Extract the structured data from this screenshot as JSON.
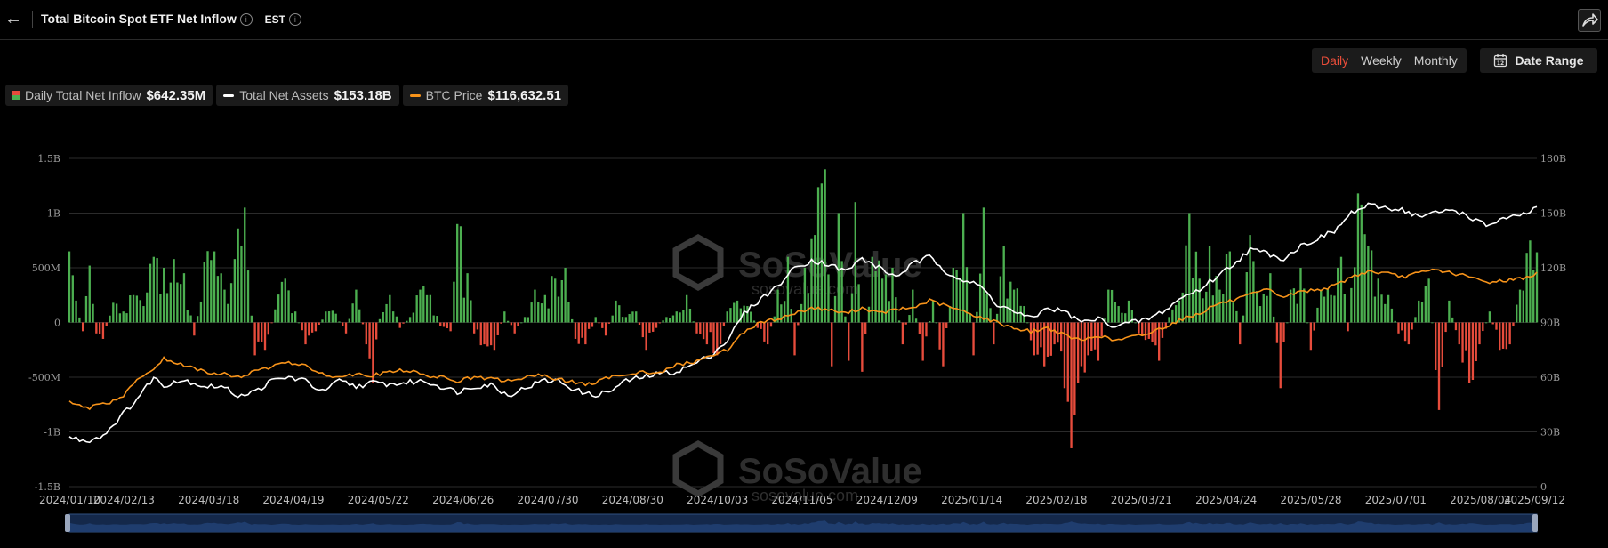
{
  "header": {
    "title": "Total Bitcoin Spot ETF Net Inflow",
    "timezone": "EST"
  },
  "toolbar": {
    "periods": [
      "Daily",
      "Weekly",
      "Monthly"
    ],
    "active_period": "Daily",
    "date_range_label": "Date Range"
  },
  "legend": [
    {
      "label": "Daily Total Net Inflow",
      "value": "$642.35M"
    },
    {
      "label": "Total Net Assets",
      "value": "$153.18B",
      "color": "#ffffff"
    },
    {
      "label": "BTC Price",
      "value": "$116,632.51",
      "color": "#f7931a"
    }
  ],
  "watermark": {
    "brand": "SoSoValue",
    "url": "sosovalue.com"
  },
  "colors": {
    "positive": "#4caf50",
    "negative": "#e74c3c",
    "assets": "#ffffff",
    "price": "#f7931a",
    "grid": "#2b2b2b"
  },
  "chart_data": {
    "type": "bar+line",
    "x_start": "2024/01/10",
    "x_end": "2025/09/12",
    "x_ticks": [
      "2024/01/10",
      "2024/02/13",
      "2024/03/18",
      "2024/04/19",
      "2024/05/22",
      "2024/06/26",
      "2024/07/30",
      "2024/08/30",
      "2024/10/03",
      "2024/11/05",
      "2024/12/09",
      "2025/01/14",
      "2025/02/18",
      "2025/03/21",
      "2025/04/24",
      "2025/05/28",
      "2025/07/01",
      "2025/08/04",
      "2025/09/12"
    ],
    "y_left": {
      "ticks": [
        "1.5B",
        "1B",
        "500M",
        "0",
        "-500M",
        "-1B",
        "-1.5B"
      ],
      "range": [
        -1500,
        1500
      ],
      "unit": "M USD"
    },
    "y_right": {
      "ticks": [
        "180B",
        "150B",
        "120B",
        "90B",
        "60B",
        "30B",
        "0"
      ],
      "range": [
        0,
        180
      ],
      "unit": "B USD"
    },
    "anchors_net_inflow": [
      [
        0,
        650
      ],
      [
        2,
        200
      ],
      [
        4,
        -80
      ],
      [
        6,
        520
      ],
      [
        8,
        -100
      ],
      [
        10,
        -150
      ],
      [
        13,
        180
      ],
      [
        16,
        100
      ],
      [
        19,
        250
      ],
      [
        22,
        150
      ],
      [
        25,
        600
      ],
      [
        28,
        500
      ],
      [
        31,
        580
      ],
      [
        34,
        450
      ],
      [
        37,
        -120
      ],
      [
        40,
        550
      ],
      [
        43,
        650
      ],
      [
        46,
        300
      ],
      [
        49,
        580
      ],
      [
        52,
        1050
      ],
      [
        55,
        -300
      ],
      [
        58,
        -250
      ],
      [
        61,
        120
      ],
      [
        64,
        400
      ],
      [
        67,
        100
      ],
      [
        70,
        -200
      ],
      [
        73,
        -80
      ],
      [
        76,
        100
      ],
      [
        79,
        80
      ],
      [
        82,
        -100
      ],
      [
        85,
        300
      ],
      [
        88,
        -200
      ],
      [
        90,
        -550
      ],
      [
        92,
        30
      ],
      [
        95,
        250
      ],
      [
        98,
        -50
      ],
      [
        101,
        50
      ],
      [
        104,
        300
      ],
      [
        107,
        250
      ],
      [
        110,
        -30
      ],
      [
        113,
        -80
      ],
      [
        115,
        900
      ],
      [
        118,
        450
      ],
      [
        120,
        -100
      ],
      [
        123,
        -200
      ],
      [
        126,
        -250
      ],
      [
        129,
        100
      ],
      [
        132,
        -100
      ],
      [
        135,
        50
      ],
      [
        138,
        300
      ],
      [
        141,
        250
      ],
      [
        144,
        400
      ],
      [
        147,
        500
      ],
      [
        150,
        -150
      ],
      [
        153,
        -200
      ],
      [
        156,
        50
      ],
      [
        159,
        -120
      ],
      [
        162,
        200
      ],
      [
        165,
        50
      ],
      [
        168,
        100
      ],
      [
        171,
        -250
      ],
      [
        174,
        -50
      ],
      [
        177,
        50
      ],
      [
        180,
        100
      ],
      [
        183,
        250
      ],
      [
        186,
        -100
      ],
      [
        189,
        -200
      ],
      [
        192,
        -300
      ],
      [
        195,
        100
      ],
      [
        198,
        200
      ],
      [
        201,
        150
      ],
      [
        204,
        -50
      ],
      [
        207,
        -200
      ],
      [
        210,
        300
      ],
      [
        213,
        600
      ],
      [
        215,
        -300
      ],
      [
        218,
        500
      ],
      [
        221,
        800
      ],
      [
        224,
        1400
      ],
      [
        226,
        -400
      ],
      [
        228,
        1000
      ],
      [
        231,
        -350
      ],
      [
        233,
        1100
      ],
      [
        235,
        -450
      ],
      [
        238,
        600
      ],
      [
        241,
        400
      ],
      [
        244,
        500
      ],
      [
        247,
        -200
      ],
      [
        250,
        300
      ],
      [
        253,
        -350
      ],
      [
        256,
        200
      ],
      [
        259,
        -400
      ],
      [
        262,
        500
      ],
      [
        265,
        1000
      ],
      [
        268,
        -300
      ],
      [
        271,
        1050
      ],
      [
        274,
        -200
      ],
      [
        277,
        700
      ],
      [
        280,
        300
      ],
      [
        283,
        150
      ],
      [
        286,
        -300
      ],
      [
        289,
        -400
      ],
      [
        292,
        -200
      ],
      [
        295,
        -600
      ],
      [
        297,
        -1150
      ],
      [
        299,
        -550
      ],
      [
        302,
        -300
      ],
      [
        305,
        -350
      ],
      [
        308,
        300
      ],
      [
        311,
        150
      ],
      [
        314,
        200
      ],
      [
        317,
        -100
      ],
      [
        320,
        -150
      ],
      [
        323,
        -350
      ],
      [
        326,
        50
      ],
      [
        329,
        200
      ],
      [
        332,
        1000
      ],
      [
        335,
        400
      ],
      [
        338,
        700
      ],
      [
        341,
        300
      ],
      [
        344,
        650
      ],
      [
        347,
        -200
      ],
      [
        350,
        800
      ],
      [
        353,
        150
      ],
      [
        356,
        450
      ],
      [
        359,
        -600
      ],
      [
        362,
        300
      ],
      [
        365,
        500
      ],
      [
        368,
        -250
      ],
      [
        371,
        300
      ],
      [
        374,
        250
      ],
      [
        377,
        600
      ],
      [
        379,
        -80
      ],
      [
        382,
        1180
      ],
      [
        385,
        700
      ],
      [
        388,
        400
      ],
      [
        391,
        250
      ],
      [
        394,
        -100
      ],
      [
        397,
        -200
      ],
      [
        400,
        200
      ],
      [
        403,
        400
      ],
      [
        406,
        -800
      ],
      [
        409,
        200
      ],
      [
        412,
        -200
      ],
      [
        415,
        -550
      ],
      [
        418,
        -200
      ],
      [
        421,
        100
      ],
      [
        424,
        -250
      ],
      [
        427,
        -200
      ],
      [
        430,
        300
      ],
      [
        433,
        750
      ],
      [
        435,
        642
      ]
    ],
    "anchors_total_net_assets": [
      [
        0,
        27
      ],
      [
        5,
        25
      ],
      [
        10,
        28
      ],
      [
        15,
        38
      ],
      [
        20,
        48
      ],
      [
        25,
        60
      ],
      [
        28,
        55
      ],
      [
        31,
        58
      ],
      [
        35,
        58
      ],
      [
        40,
        55
      ],
      [
        45,
        55
      ],
      [
        50,
        50
      ],
      [
        55,
        52
      ],
      [
        60,
        58
      ],
      [
        65,
        60
      ],
      [
        70,
        58
      ],
      [
        75,
        52
      ],
      [
        80,
        58
      ],
      [
        85,
        55
      ],
      [
        90,
        57
      ],
      [
        95,
        56
      ],
      [
        100,
        57
      ],
      [
        105,
        58
      ],
      [
        110,
        55
      ],
      [
        115,
        52
      ],
      [
        120,
        55
      ],
      [
        125,
        56
      ],
      [
        130,
        50
      ],
      [
        135,
        54
      ],
      [
        140,
        58
      ],
      [
        145,
        58
      ],
      [
        150,
        53
      ],
      [
        155,
        50
      ],
      [
        160,
        52
      ],
      [
        165,
        58
      ],
      [
        170,
        60
      ],
      [
        175,
        62
      ],
      [
        180,
        63
      ],
      [
        185,
        67
      ],
      [
        190,
        72
      ],
      [
        195,
        80
      ],
      [
        200,
        95
      ],
      [
        205,
        103
      ],
      [
        210,
        110
      ],
      [
        215,
        120
      ],
      [
        220,
        124
      ],
      [
        225,
        122
      ],
      [
        230,
        118
      ],
      [
        235,
        125
      ],
      [
        240,
        120
      ],
      [
        245,
        115
      ],
      [
        250,
        122
      ],
      [
        255,
        126
      ],
      [
        260,
        118
      ],
      [
        265,
        113
      ],
      [
        270,
        110
      ],
      [
        275,
        100
      ],
      [
        280,
        96
      ],
      [
        285,
        92
      ],
      [
        290,
        98
      ],
      [
        295,
        96
      ],
      [
        300,
        90
      ],
      [
        305,
        92
      ],
      [
        310,
        88
      ],
      [
        315,
        90
      ],
      [
        320,
        92
      ],
      [
        325,
        97
      ],
      [
        330,
        104
      ],
      [
        335,
        108
      ],
      [
        340,
        115
      ],
      [
        345,
        122
      ],
      [
        350,
        130
      ],
      [
        355,
        128
      ],
      [
        360,
        125
      ],
      [
        365,
        132
      ],
      [
        370,
        136
      ],
      [
        375,
        140
      ],
      [
        380,
        150
      ],
      [
        385,
        154
      ],
      [
        390,
        153
      ],
      [
        395,
        152
      ],
      [
        400,
        148
      ],
      [
        405,
        150
      ],
      [
        410,
        152
      ],
      [
        415,
        148
      ],
      [
        420,
        143
      ],
      [
        425,
        147
      ],
      [
        430,
        148
      ],
      [
        435,
        153
      ]
    ],
    "anchors_btc_price": [
      [
        0,
        46
      ],
      [
        5,
        43
      ],
      [
        10,
        45
      ],
      [
        15,
        48
      ],
      [
        20,
        58
      ],
      [
        25,
        65
      ],
      [
        28,
        70
      ],
      [
        31,
        68
      ],
      [
        35,
        66
      ],
      [
        40,
        63
      ],
      [
        45,
        62
      ],
      [
        50,
        60
      ],
      [
        55,
        63
      ],
      [
        60,
        66
      ],
      [
        65,
        68
      ],
      [
        70,
        66
      ],
      [
        75,
        62
      ],
      [
        80,
        60
      ],
      [
        85,
        62
      ],
      [
        90,
        61
      ],
      [
        95,
        63
      ],
      [
        100,
        64
      ],
      [
        105,
        61
      ],
      [
        110,
        60
      ],
      [
        115,
        58
      ],
      [
        120,
        60
      ],
      [
        125,
        59
      ],
      [
        130,
        58
      ],
      [
        135,
        60
      ],
      [
        140,
        61
      ],
      [
        145,
        59
      ],
      [
        150,
        57
      ],
      [
        155,
        56
      ],
      [
        160,
        60
      ],
      [
        165,
        62
      ],
      [
        170,
        63
      ],
      [
        175,
        62
      ],
      [
        180,
        67
      ],
      [
        185,
        68
      ],
      [
        190,
        72
      ],
      [
        195,
        75
      ],
      [
        200,
        85
      ],
      [
        205,
        90
      ],
      [
        210,
        92
      ],
      [
        215,
        95
      ],
      [
        220,
        98
      ],
      [
        225,
        97
      ],
      [
        230,
        95
      ],
      [
        235,
        98
      ],
      [
        240,
        95
      ],
      [
        245,
        97
      ],
      [
        250,
        98
      ],
      [
        255,
        102
      ],
      [
        260,
        99
      ],
      [
        265,
        96
      ],
      [
        270,
        93
      ],
      [
        275,
        90
      ],
      [
        280,
        87
      ],
      [
        285,
        85
      ],
      [
        290,
        87
      ],
      [
        295,
        83
      ],
      [
        300,
        80
      ],
      [
        305,
        83
      ],
      [
        310,
        80
      ],
      [
        315,
        82
      ],
      [
        320,
        84
      ],
      [
        325,
        88
      ],
      [
        330,
        92
      ],
      [
        335,
        95
      ],
      [
        340,
        100
      ],
      [
        345,
        102
      ],
      [
        350,
        105
      ],
      [
        355,
        108
      ],
      [
        360,
        104
      ],
      [
        365,
        107
      ],
      [
        370,
        108
      ],
      [
        375,
        110
      ],
      [
        380,
        115
      ],
      [
        385,
        118
      ],
      [
        390,
        117
      ],
      [
        395,
        115
      ],
      [
        400,
        117
      ],
      [
        405,
        119
      ],
      [
        410,
        117
      ],
      [
        415,
        115
      ],
      [
        420,
        112
      ],
      [
        425,
        113
      ],
      [
        430,
        114
      ],
      [
        435,
        116.6
      ]
    ]
  }
}
